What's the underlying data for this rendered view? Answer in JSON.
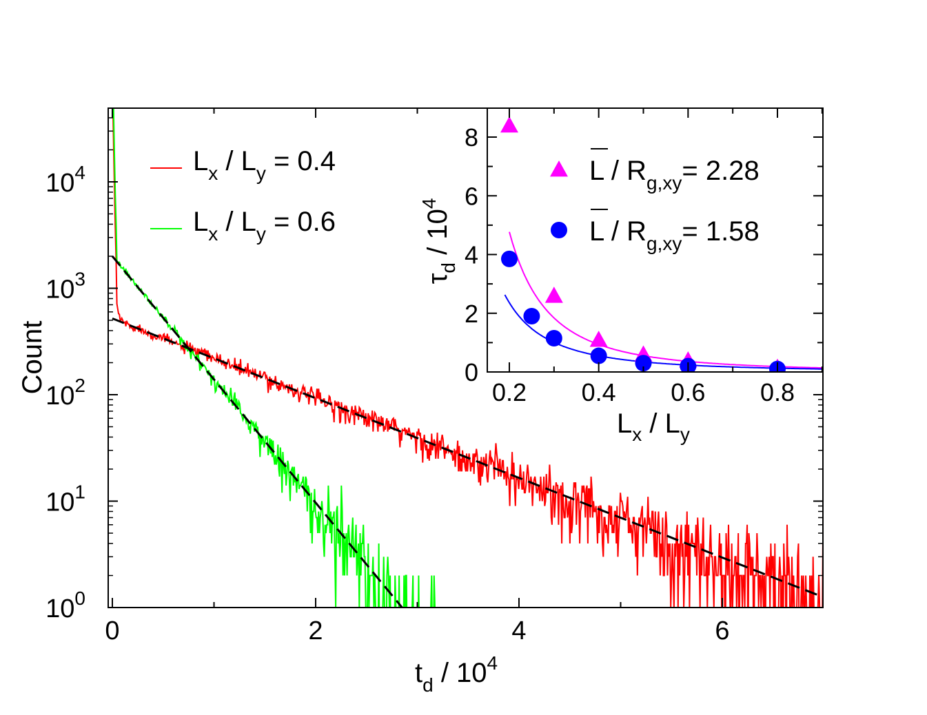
{
  "chart_data": [
    {
      "type": "line",
      "name": "main",
      "xlabel": "t_d / 10^4",
      "ylabel": "Count",
      "xlim": [
        0,
        7
      ],
      "ylim": [
        1,
        50000
      ],
      "yscale": "log",
      "x_ticks": [
        "0",
        "2",
        "4",
        "6"
      ],
      "y_ticks": [
        {
          "base": "10",
          "exp": "0"
        },
        {
          "base": "10",
          "exp": "1"
        },
        {
          "base": "10",
          "exp": "2"
        },
        {
          "base": "10",
          "exp": "3"
        },
        {
          "base": "10",
          "exp": "4"
        }
      ],
      "x_unit": "t",
      "x_unit_sub": "d",
      "x_unit_rest": " / 10",
      "x_unit_exp": "4",
      "series": [
        {
          "name": "L_x / L_y = 0.4",
          "color": "#ff0000",
          "fit_A": 520,
          "tau": 1.16,
          "spike_amp": 100000,
          "spike_tau": 0.02,
          "x_end": 7.0
        },
        {
          "name": "L_x / L_y = 0.6",
          "color": "#00ff00",
          "fit_A": 2000,
          "tau": 0.375,
          "spike_amp": 200000,
          "spike_tau": 0.012,
          "x_end": 3.95
        }
      ],
      "fits": [
        {
          "A": 520,
          "tau": 1.16,
          "x_range": [
            0,
            7.0
          ],
          "color": "#000000",
          "style": "dashed"
        },
        {
          "A": 2000,
          "tau": 0.375,
          "x_range": [
            0,
            2.85
          ],
          "color": "#000000",
          "style": "dashed"
        }
      ],
      "legend": [
        {
          "label_main": "L",
          "sub1": "x",
          "mid": " / L",
          "sub2": "y",
          "rest": " = 0.4",
          "color": "#ff0000"
        },
        {
          "label_main": "L",
          "sub1": "x",
          "mid": " / L",
          "sub2": "y",
          "rest": " = 0.6",
          "color": "#00ff00"
        }
      ],
      "legend_position": "top-left"
    },
    {
      "type": "scatter",
      "name": "inset",
      "xlabel": "L_x / L_y",
      "ylabel": "tau_d / 10^4",
      "xlim": [
        0.15,
        0.9
      ],
      "ylim": [
        0,
        9
      ],
      "x_ticks": [
        "0.2",
        "0.4",
        "0.6",
        "0.8"
      ],
      "y_ticks": [
        "0",
        "2",
        "4",
        "6",
        "8"
      ],
      "x_label_parts": {
        "a": "L",
        "sa": "x",
        "b": " / L",
        "sb": "y"
      },
      "y_label_parts": {
        "a": "τ",
        "sa": "d",
        "b": " / 10",
        "e": "4"
      },
      "series": [
        {
          "name": "L / R_g,xy = 2.28",
          "marker": "triangle",
          "color": "#ff00ff",
          "x": [
            0.2,
            0.3,
            0.4,
            0.5,
            0.6,
            0.8
          ],
          "y": [
            8.4,
            2.6,
            1.1,
            0.6,
            0.4,
            0.15
          ],
          "fit": {
            "a": 0.36,
            "p": 2.35,
            "x_range": [
              0.2,
              0.9
            ]
          }
        },
        {
          "name": "L / R_g,xy = 1.58",
          "marker": "circle",
          "color": "#0000ff",
          "x": [
            0.2,
            0.25,
            0.3,
            0.4,
            0.5,
            0.6,
            0.8
          ],
          "y": [
            3.85,
            1.9,
            1.15,
            0.55,
            0.3,
            0.2,
            0.1
          ],
          "fit": {
            "a": 0.155,
            "p": 2.1,
            "x_range": [
              0.19,
              0.9
            ]
          }
        }
      ],
      "legend": [
        {
          "a": "L",
          "b": " / R",
          "sub": "g,xy",
          "rest": "= 2.28",
          "color": "#ff00ff",
          "marker": "triangle"
        },
        {
          "a": "L",
          "b": " / R",
          "sub": "g,xy",
          "rest": "= 1.58",
          "color": "#0000ff",
          "marker": "circle"
        }
      ],
      "legend_position": "top-right"
    }
  ]
}
